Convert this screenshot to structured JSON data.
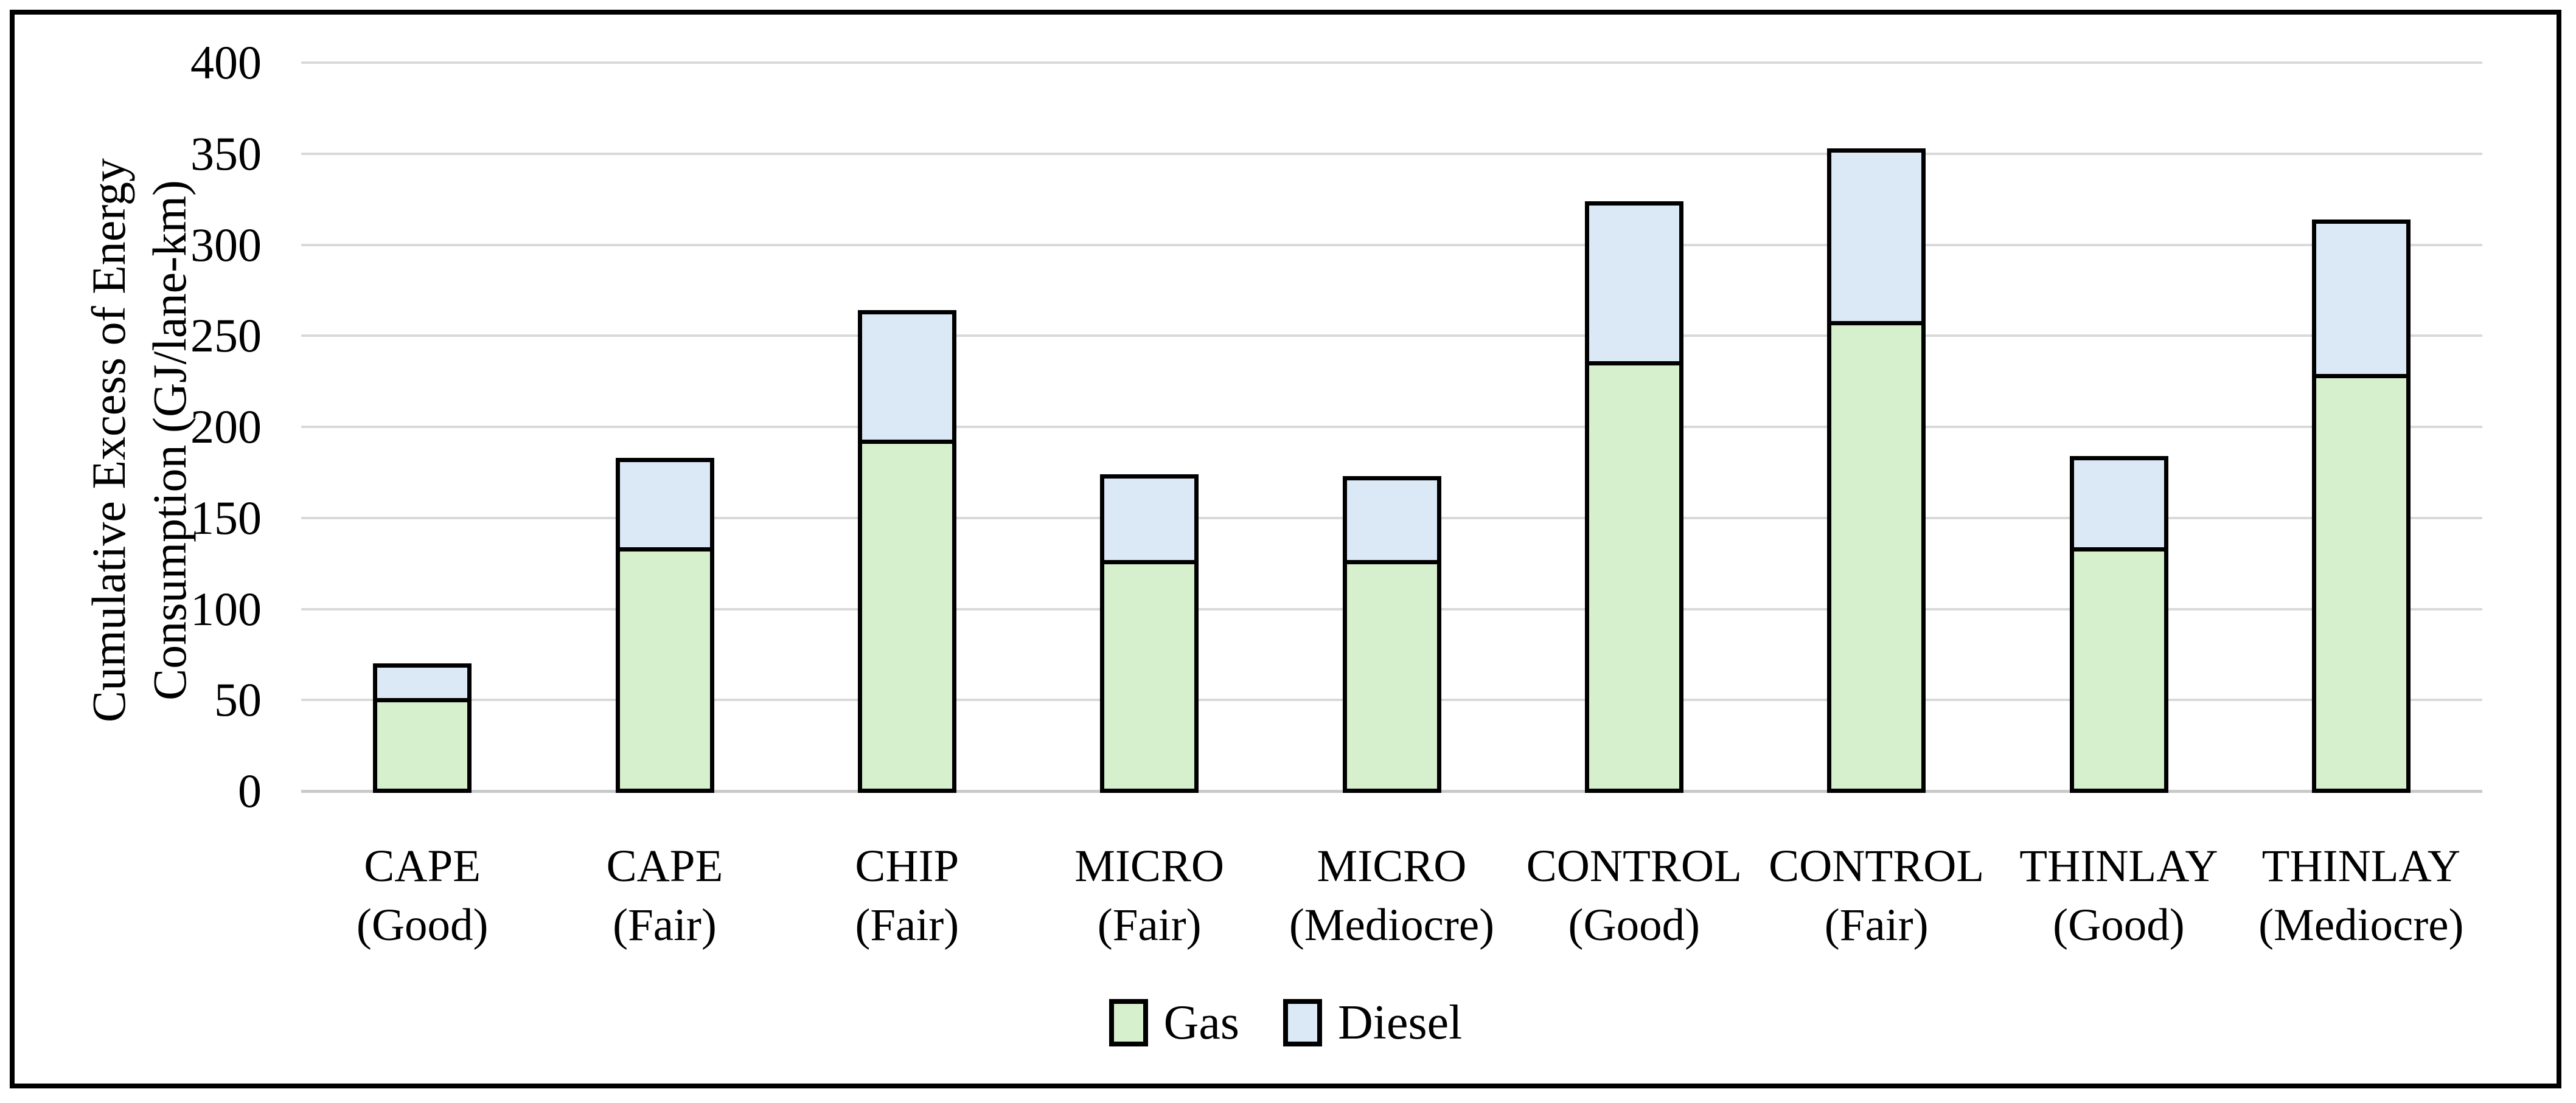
{
  "chart_data": {
    "type": "bar",
    "stacked": true,
    "title": "",
    "ylabel_line1": "Cumulative Excess of Energy",
    "ylabel_line2": "Consumption (GJ/lane-km)",
    "xlabel": "",
    "ylim": [
      0,
      400
    ],
    "yticks": [
      0,
      50,
      100,
      150,
      200,
      250,
      300,
      350,
      400
    ],
    "grid": true,
    "legend_position": "bottom-center",
    "categories": [
      {
        "line1": "CAPE",
        "line2": "(Good)"
      },
      {
        "line1": "CAPE",
        "line2": "(Fair)"
      },
      {
        "line1": "CHIP",
        "line2": "(Fair)"
      },
      {
        "line1": "MICRO",
        "line2": "(Fair)"
      },
      {
        "line1": "MICRO",
        "line2": "(Mediocre)"
      },
      {
        "line1": "CONTROL",
        "line2": "(Good)"
      },
      {
        "line1": "CONTROL",
        "line2": "(Fair)"
      },
      {
        "line1": "THINLAY",
        "line2": "(Good)"
      },
      {
        "line1": "THINLAY",
        "line2": "(Mediocre)"
      }
    ],
    "series": [
      {
        "name": "Gas",
        "color": "#D6F0CE",
        "values": [
          51,
          134,
          193,
          127,
          127,
          236,
          258,
          134,
          229
        ]
      },
      {
        "name": "Diesel",
        "color": "#DBE8F6",
        "values": [
          19,
          49,
          71,
          47,
          46,
          88,
          95,
          50,
          85
        ]
      }
    ],
    "stack_totals": [
      70,
      183,
      264,
      174,
      173,
      324,
      353,
      184,
      314
    ]
  },
  "colors": {
    "gridline": "#D9D9D9",
    "x_axis_line": "#C9C9C9",
    "bar_outline": "#000000",
    "frame_border": "#000000",
    "background": "#FFFFFF",
    "text": "#000000"
  }
}
